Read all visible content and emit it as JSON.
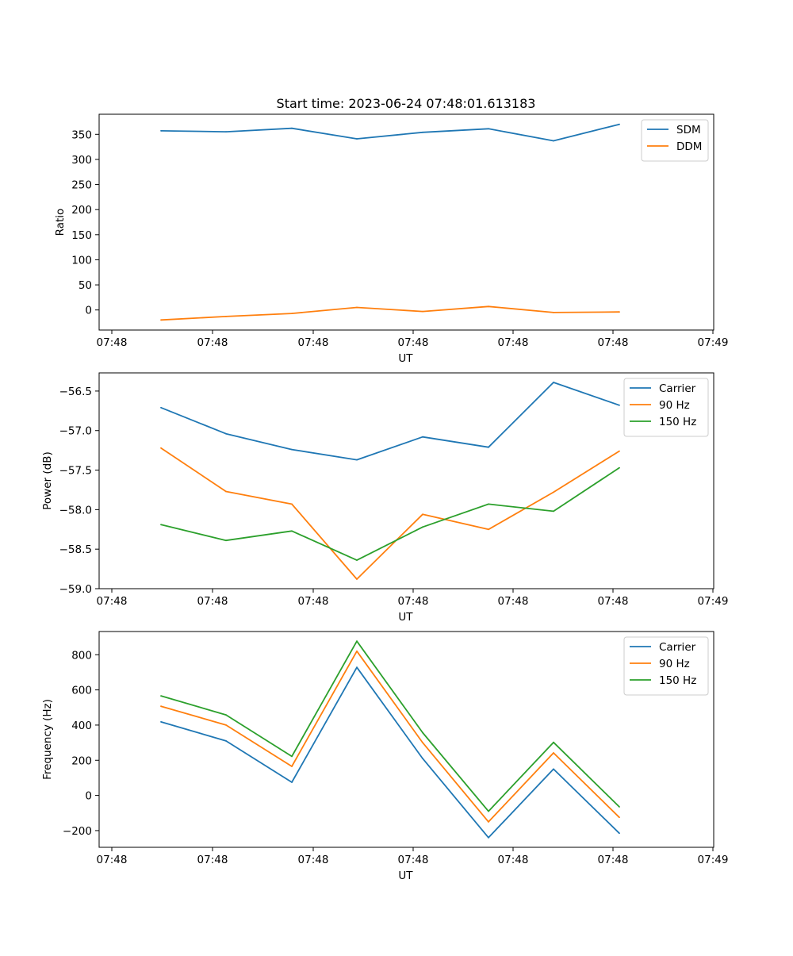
{
  "figure": {
    "title": "Start time: 2023-06-24 07:48:01.613183"
  },
  "chart_data": [
    {
      "type": "line",
      "title": "Start time: 2023-06-24 07:48:01.613183",
      "xlabel": "UT",
      "ylabel": "Ratio",
      "x_tick_labels": [
        "07:48",
        "07:48",
        "07:48",
        "07:48",
        "07:48",
        "07:48",
        "07:49"
      ],
      "y_ticks": [
        0,
        50,
        100,
        150,
        200,
        250,
        300,
        350
      ],
      "ylim": [
        -40,
        390
      ],
      "grid": false,
      "legend_position": "top-right",
      "series": [
        {
          "name": "SDM",
          "color": "#1f77b4",
          "values": [
            357,
            355,
            362,
            341,
            354,
            361,
            337,
            370
          ]
        },
        {
          "name": "DDM",
          "color": "#ff7f0e",
          "values": [
            -20,
            -13,
            -7,
            5,
            -3,
            7,
            -5,
            -4
          ]
        }
      ]
    },
    {
      "type": "line",
      "xlabel": "UT",
      "ylabel": "Power (dB)",
      "x_tick_labels": [
        "07:48",
        "07:48",
        "07:48",
        "07:48",
        "07:48",
        "07:48",
        "07:49"
      ],
      "y_ticks": [
        -59.0,
        -58.5,
        -58.0,
        -57.5,
        -57.0,
        -56.5
      ],
      "y_tick_labels": [
        "−59.0",
        "−58.5",
        "−58.0",
        "−57.5",
        "−57.0",
        "−56.5"
      ],
      "ylim": [
        -59.0,
        -56.27
      ],
      "grid": false,
      "legend_position": "top-right",
      "series": [
        {
          "name": "Carrier",
          "color": "#1f77b4",
          "values": [
            -56.71,
            -57.04,
            -57.24,
            -57.37,
            -57.08,
            -57.21,
            -56.39,
            -56.68
          ]
        },
        {
          "name": "90 Hz",
          "color": "#ff7f0e",
          "values": [
            -57.22,
            -57.77,
            -57.93,
            -58.88,
            -58.06,
            -58.25,
            -57.78,
            -57.26
          ]
        },
        {
          "name": "150 Hz",
          "color": "#2ca02c",
          "values": [
            -58.19,
            -58.39,
            -58.27,
            -58.64,
            -58.22,
            -57.93,
            -58.02,
            -57.47
          ]
        }
      ]
    },
    {
      "type": "line",
      "xlabel": "UT",
      "ylabel": "Frequency (Hz)",
      "x_tick_labels": [
        "07:48",
        "07:48",
        "07:48",
        "07:48",
        "07:48",
        "07:48",
        "07:49"
      ],
      "y_ticks": [
        -200,
        0,
        200,
        400,
        600,
        800
      ],
      "y_tick_labels": [
        "−200",
        "0",
        "200",
        "400",
        "600",
        "800"
      ],
      "ylim": [
        -295,
        932
      ],
      "grid": false,
      "legend_position": "top-right",
      "series": [
        {
          "name": "Carrier",
          "color": "#1f77b4",
          "values": [
            418,
            310,
            75,
            728,
            210,
            -240,
            150,
            -215
          ]
        },
        {
          "name": "90 Hz",
          "color": "#ff7f0e",
          "values": [
            507,
            400,
            165,
            820,
            300,
            -150,
            242,
            -125
          ]
        },
        {
          "name": "150 Hz",
          "color": "#2ca02c",
          "values": [
            566,
            458,
            222,
            877,
            357,
            -90,
            302,
            -65
          ]
        }
      ]
    }
  ]
}
